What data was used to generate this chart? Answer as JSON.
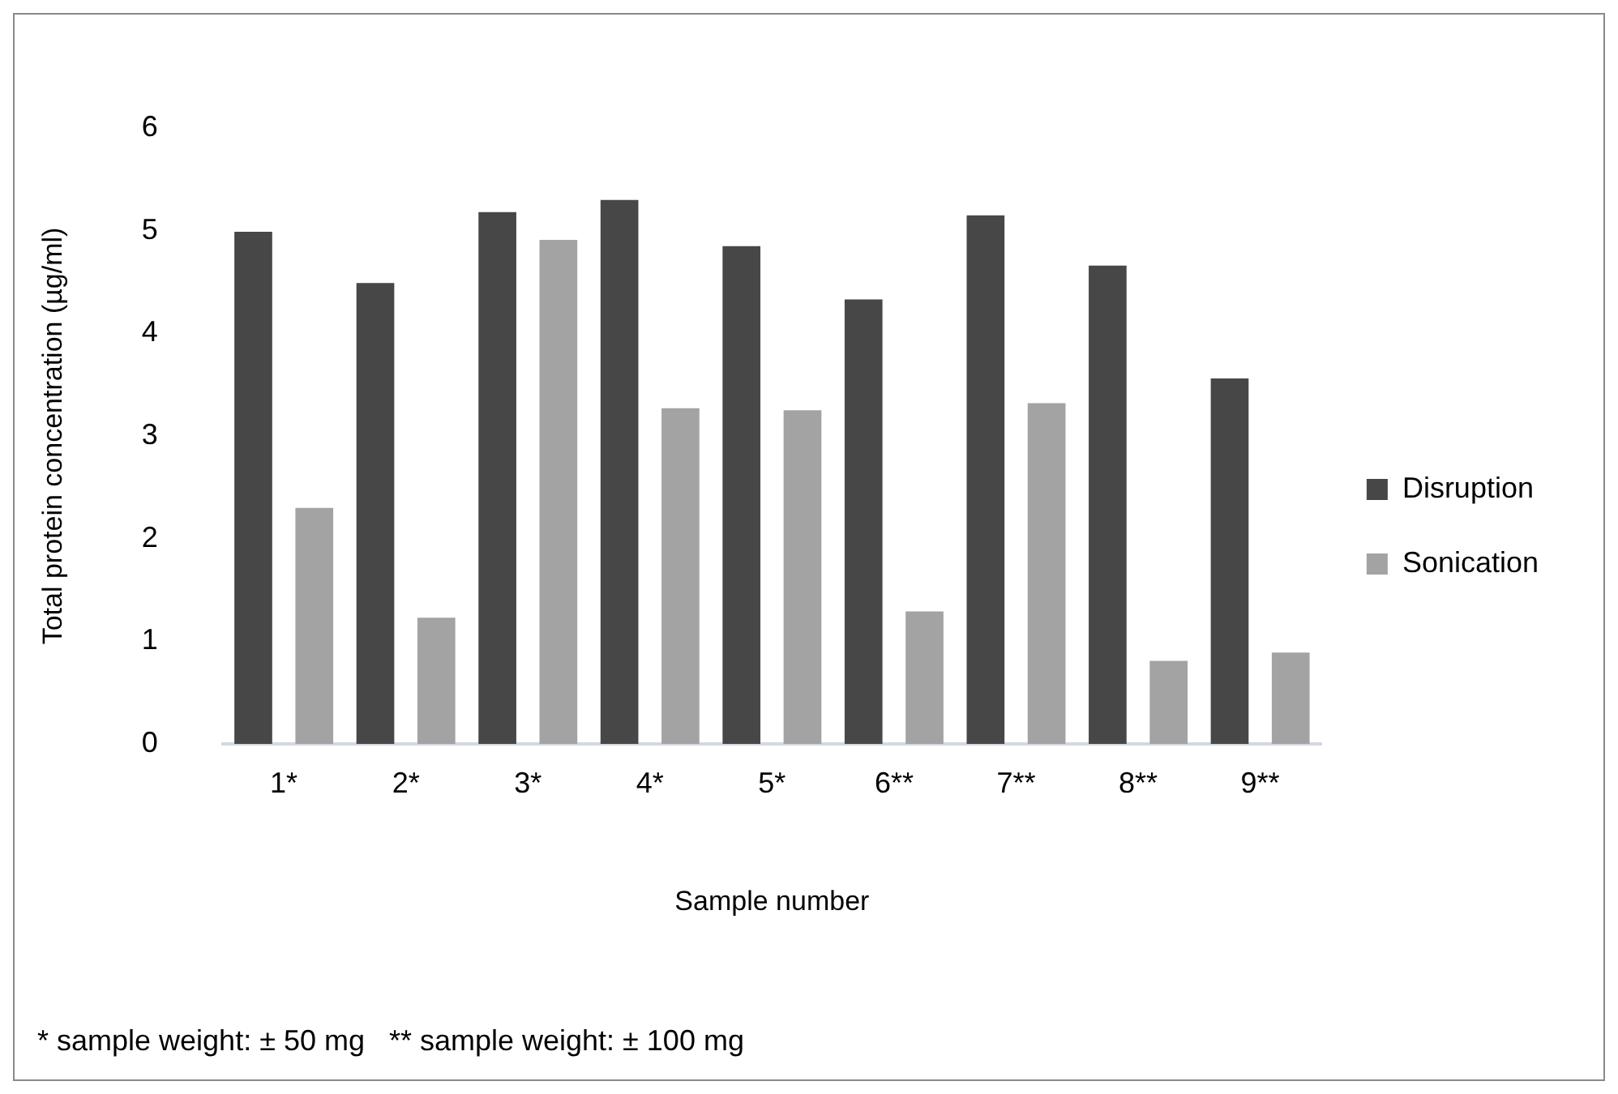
{
  "chart_data": {
    "type": "bar",
    "xlabel": "Sample number",
    "ylabel": "Total protein concentration (µg/ml)",
    "categories": [
      "1*",
      "2*",
      "3*",
      "4*",
      "5*",
      "6**",
      "7**",
      "8**",
      "9**"
    ],
    "series": [
      {
        "name": "Disruption",
        "color": "#474747",
        "values": [
          4.99,
          4.49,
          5.18,
          5.3,
          4.85,
          4.33,
          5.15,
          4.66,
          3.56
        ]
      },
      {
        "name": "Sonication",
        "color": "#a3a3a3",
        "values": [
          2.3,
          1.23,
          4.91,
          3.27,
          3.25,
          1.29,
          3.32,
          0.81,
          0.89
        ]
      }
    ],
    "ylim": [
      0,
      6
    ],
    "yticks": [
      0,
      1,
      2,
      3,
      4,
      5,
      6
    ],
    "grid": false,
    "legend": "right",
    "annotations": [
      "* sample weight: ± 50 mg   ** sample weight: ± 100 mg"
    ]
  }
}
